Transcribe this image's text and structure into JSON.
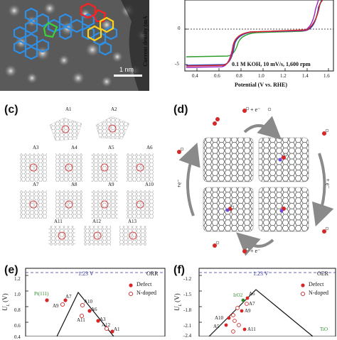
{
  "panel_b": {
    "y_label": "Current density (mA",
    "x_label": "Potential (V vs. RHE)",
    "condition": "0.1 M KOH, 10 mV/s, 1,600 rpm",
    "x_ticks": [
      "0.4",
      "0.6",
      "0.8",
      "1.0",
      "1.2",
      "1.4",
      "1.6"
    ],
    "y_ticks": [
      "0",
      "-5"
    ],
    "colors": {
      "green": "#2ca02c",
      "red": "#d62728",
      "blue": "#1f3fbf",
      "purple": "#9b2bbf"
    }
  },
  "panel_a": {
    "scale_bar": "1 nm"
  },
  "panel_c": {
    "letter": "(c)",
    "sites": [
      "A1",
      "A2",
      "A3",
      "A4",
      "A5",
      "A6",
      "A7",
      "A8",
      "A9",
      "A10",
      "A11",
      "A12",
      "A13"
    ]
  },
  "panel_d": {
    "letter": "(d)",
    "labels": {
      "top": "+ e⁻",
      "right": "+ e⁻",
      "bottom": "+ e⁻",
      "left": "+e⁻"
    }
  },
  "panel_e": {
    "letter": "(e)",
    "reference": "1.23 V",
    "reaction": "ORR",
    "y_ticks": [
      "1.2",
      "1.0",
      "0.8",
      "0.6",
      "0.4"
    ],
    "legend": [
      "Defect",
      "N-doped"
    ],
    "ref_label": "Pt(111)",
    "points": [
      "A7",
      "A9",
      "A10",
      "A6",
      "A11",
      "A3",
      "A12",
      "A1"
    ],
    "y_label_main": "U",
    "y_label_sub": "L",
    "y_label_unit": "(V)"
  },
  "panel_f": {
    "letter": "(f)",
    "reference": "1.23 V",
    "reaction": "OER",
    "y_ticks": [
      "-1.2",
      "-1.5",
      "-1.8",
      "-2.1",
      "-2.4"
    ],
    "legend": [
      "Defect",
      "N-doped"
    ],
    "ref_label": "IrO2",
    "points": [
      "A6",
      "A7",
      "A9",
      "A10",
      "A5",
      "A11"
    ],
    "bottom_ref": "TiO",
    "y_label_main": "U",
    "y_label_sub": "L",
    "y_label_unit": "(V)"
  },
  "colors": {
    "legend_red": "#d62728",
    "green_label": "#2e8b2e",
    "dashed_ref": "#3a3aa0"
  }
}
